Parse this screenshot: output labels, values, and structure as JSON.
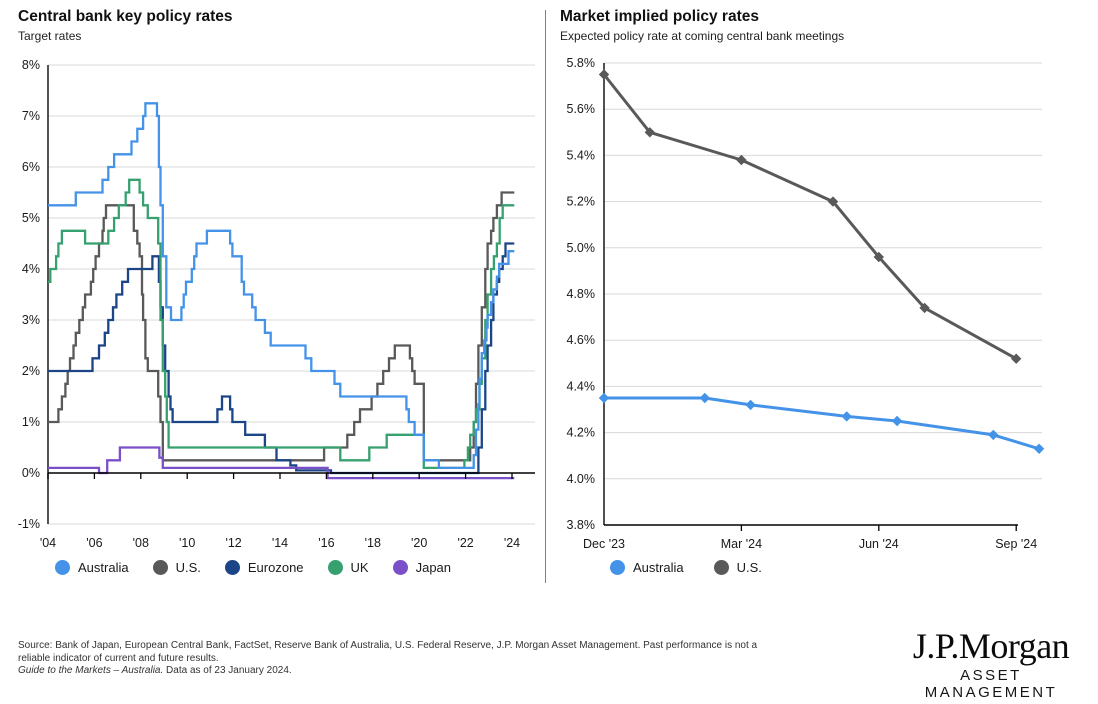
{
  "panels": [
    {
      "title": "Central bank key policy rates",
      "subtitle": "Target rates"
    },
    {
      "title": "Market implied policy rates",
      "subtitle": "Expected policy rate at coming central bank meetings"
    }
  ],
  "chart_data": [
    {
      "type": "line",
      "subtype": "step",
      "title": "Central bank key policy rates",
      "ylabel": "Target rates",
      "x_domain": [
        2004,
        2024.15
      ],
      "ylim": [
        -1,
        8
      ],
      "y_ticks": [
        8,
        7,
        6,
        5,
        4,
        3,
        2,
        1,
        0,
        -1
      ],
      "y_tick_labels": [
        "8%",
        "7%",
        "6%",
        "5%",
        "4%",
        "3%",
        "2%",
        "1%",
        "0%",
        "-1%"
      ],
      "x_ticks": [
        2004,
        2006,
        2008,
        2010,
        2012,
        2014,
        2016,
        2018,
        2020,
        2022,
        2024
      ],
      "x_tick_labels": [
        "'04",
        "'06",
        "'08",
        "'10",
        "'12",
        "'14",
        "'16",
        "'18",
        "'20",
        "'22",
        "'24"
      ],
      "grid": "horizontal",
      "legend_position": "bottom",
      "zero_axis": true,
      "series": [
        {
          "name": "U.S.",
          "color": "#595959",
          "points": [
            [
              2004.0,
              1.0
            ],
            [
              2004.45,
              1.25
            ],
            [
              2004.6,
              1.5
            ],
            [
              2004.75,
              1.75
            ],
            [
              2004.85,
              2.0
            ],
            [
              2004.95,
              2.25
            ],
            [
              2005.1,
              2.5
            ],
            [
              2005.2,
              2.75
            ],
            [
              2005.35,
              3.0
            ],
            [
              2005.5,
              3.25
            ],
            [
              2005.6,
              3.5
            ],
            [
              2005.85,
              3.75
            ],
            [
              2005.95,
              4.0
            ],
            [
              2006.05,
              4.25
            ],
            [
              2006.2,
              4.5
            ],
            [
              2006.35,
              4.75
            ],
            [
              2006.4,
              5.0
            ],
            [
              2006.5,
              5.25
            ],
            [
              2007.7,
              4.75
            ],
            [
              2007.85,
              4.5
            ],
            [
              2007.95,
              4.25
            ],
            [
              2008.05,
              3.5
            ],
            [
              2008.1,
              3.0
            ],
            [
              2008.2,
              2.25
            ],
            [
              2008.3,
              2.0
            ],
            [
              2008.75,
              1.5
            ],
            [
              2008.85,
              1.0
            ],
            [
              2008.95,
              0.25
            ],
            [
              2015.9,
              0.5
            ],
            [
              2016.9,
              0.75
            ],
            [
              2017.2,
              1.0
            ],
            [
              2017.45,
              1.25
            ],
            [
              2017.95,
              1.5
            ],
            [
              2018.2,
              1.75
            ],
            [
              2018.45,
              2.0
            ],
            [
              2018.7,
              2.25
            ],
            [
              2018.95,
              2.5
            ],
            [
              2019.6,
              2.25
            ],
            [
              2019.7,
              2.0
            ],
            [
              2019.8,
              1.75
            ],
            [
              2020.2,
              0.25
            ],
            [
              2022.2,
              0.5
            ],
            [
              2022.35,
              1.0
            ],
            [
              2022.45,
              1.75
            ],
            [
              2022.55,
              2.5
            ],
            [
              2022.7,
              3.25
            ],
            [
              2022.85,
              4.0
            ],
            [
              2022.95,
              4.5
            ],
            [
              2023.1,
              4.75
            ],
            [
              2023.2,
              5.0
            ],
            [
              2023.35,
              5.25
            ],
            [
              2023.55,
              5.5
            ],
            [
              2024.1,
              5.5
            ]
          ]
        },
        {
          "name": "Eurozone",
          "color": "#1C4587",
          "points": [
            [
              2004.0,
              2.0
            ],
            [
              2005.92,
              2.25
            ],
            [
              2006.2,
              2.5
            ],
            [
              2006.45,
              2.75
            ],
            [
              2006.6,
              3.0
            ],
            [
              2006.8,
              3.25
            ],
            [
              2006.95,
              3.5
            ],
            [
              2007.2,
              3.75
            ],
            [
              2007.45,
              4.0
            ],
            [
              2008.5,
              4.25
            ],
            [
              2008.78,
              3.75
            ],
            [
              2008.85,
              3.25
            ],
            [
              2008.95,
              2.5
            ],
            [
              2009.05,
              2.0
            ],
            [
              2009.2,
              1.5
            ],
            [
              2009.28,
              1.25
            ],
            [
              2009.37,
              1.0
            ],
            [
              2011.3,
              1.25
            ],
            [
              2011.5,
              1.5
            ],
            [
              2011.85,
              1.25
            ],
            [
              2011.95,
              1.0
            ],
            [
              2012.5,
              0.75
            ],
            [
              2013.35,
              0.5
            ],
            [
              2013.85,
              0.25
            ],
            [
              2014.45,
              0.15
            ],
            [
              2014.7,
              0.05
            ],
            [
              2016.2,
              0.0
            ],
            [
              2022.55,
              0.5
            ],
            [
              2022.7,
              1.25
            ],
            [
              2022.85,
              2.0
            ],
            [
              2022.95,
              2.5
            ],
            [
              2023.1,
              3.0
            ],
            [
              2023.2,
              3.5
            ],
            [
              2023.35,
              3.75
            ],
            [
              2023.45,
              4.0
            ],
            [
              2023.6,
              4.25
            ],
            [
              2023.72,
              4.5
            ],
            [
              2024.1,
              4.5
            ]
          ]
        },
        {
          "name": "UK",
          "color": "#36A16F",
          "points": [
            [
              2004.0,
              3.75
            ],
            [
              2004.1,
              4.0
            ],
            [
              2004.35,
              4.25
            ],
            [
              2004.45,
              4.5
            ],
            [
              2004.6,
              4.75
            ],
            [
              2005.6,
              4.5
            ],
            [
              2006.6,
              4.75
            ],
            [
              2006.85,
              5.0
            ],
            [
              2007.05,
              5.25
            ],
            [
              2007.35,
              5.5
            ],
            [
              2007.5,
              5.75
            ],
            [
              2007.95,
              5.5
            ],
            [
              2008.1,
              5.25
            ],
            [
              2008.3,
              5.0
            ],
            [
              2008.75,
              4.5
            ],
            [
              2008.85,
              3.0
            ],
            [
              2008.95,
              2.0
            ],
            [
              2009.05,
              1.5
            ],
            [
              2009.12,
              1.0
            ],
            [
              2009.2,
              0.5
            ],
            [
              2016.6,
              0.25
            ],
            [
              2017.85,
              0.5
            ],
            [
              2018.6,
              0.75
            ],
            [
              2020.2,
              0.1
            ],
            [
              2021.95,
              0.25
            ],
            [
              2022.1,
              0.5
            ],
            [
              2022.2,
              0.75
            ],
            [
              2022.35,
              1.0
            ],
            [
              2022.45,
              1.25
            ],
            [
              2022.6,
              1.75
            ],
            [
              2022.7,
              2.25
            ],
            [
              2022.85,
              3.0
            ],
            [
              2022.95,
              3.5
            ],
            [
              2023.1,
              4.0
            ],
            [
              2023.22,
              4.25
            ],
            [
              2023.35,
              4.5
            ],
            [
              2023.47,
              5.0
            ],
            [
              2023.6,
              5.25
            ],
            [
              2024.1,
              5.25
            ]
          ]
        },
        {
          "name": "Japan",
          "color": "#7A4FC9",
          "points": [
            [
              2004.0,
              0.1
            ],
            [
              2006.2,
              0.0
            ],
            [
              2006.55,
              0.25
            ],
            [
              2007.1,
              0.5
            ],
            [
              2008.8,
              0.3
            ],
            [
              2008.95,
              0.1
            ],
            [
              2016.05,
              -0.1
            ],
            [
              2024.1,
              -0.1
            ]
          ]
        },
        {
          "name": "Australia",
          "color": "#4493E8",
          "points": [
            [
              2004.0,
              5.25
            ],
            [
              2005.2,
              5.5
            ],
            [
              2006.35,
              5.75
            ],
            [
              2006.6,
              6.0
            ],
            [
              2006.85,
              6.25
            ],
            [
              2007.6,
              6.5
            ],
            [
              2007.85,
              6.75
            ],
            [
              2008.1,
              7.0
            ],
            [
              2008.2,
              7.25
            ],
            [
              2008.7,
              7.0
            ],
            [
              2008.78,
              6.0
            ],
            [
              2008.85,
              5.25
            ],
            [
              2008.95,
              4.25
            ],
            [
              2009.1,
              3.25
            ],
            [
              2009.3,
              3.0
            ],
            [
              2009.75,
              3.25
            ],
            [
              2009.85,
              3.5
            ],
            [
              2009.95,
              3.75
            ],
            [
              2010.2,
              4.0
            ],
            [
              2010.3,
              4.25
            ],
            [
              2010.4,
              4.5
            ],
            [
              2010.85,
              4.75
            ],
            [
              2011.85,
              4.5
            ],
            [
              2011.95,
              4.25
            ],
            [
              2012.35,
              3.75
            ],
            [
              2012.45,
              3.5
            ],
            [
              2012.8,
              3.25
            ],
            [
              2012.95,
              3.0
            ],
            [
              2013.35,
              2.75
            ],
            [
              2013.6,
              2.5
            ],
            [
              2015.1,
              2.25
            ],
            [
              2015.35,
              2.0
            ],
            [
              2016.35,
              1.75
            ],
            [
              2016.6,
              1.5
            ],
            [
              2019.45,
              1.25
            ],
            [
              2019.55,
              1.0
            ],
            [
              2019.8,
              0.75
            ],
            [
              2020.2,
              0.25
            ],
            [
              2020.85,
              0.1
            ],
            [
              2022.35,
              0.35
            ],
            [
              2022.45,
              0.85
            ],
            [
              2022.55,
              1.35
            ],
            [
              2022.6,
              1.85
            ],
            [
              2022.7,
              2.35
            ],
            [
              2022.8,
              2.6
            ],
            [
              2022.9,
              2.85
            ],
            [
              2022.95,
              3.1
            ],
            [
              2023.1,
              3.35
            ],
            [
              2023.2,
              3.6
            ],
            [
              2023.35,
              3.85
            ],
            [
              2023.45,
              4.1
            ],
            [
              2023.85,
              4.35
            ],
            [
              2024.1,
              4.35
            ]
          ]
        }
      ],
      "legend": [
        "Australia",
        "U.S.",
        "Eurozone",
        "UK",
        "Japan"
      ],
      "legend_colors": [
        "#4493E8",
        "#595959",
        "#1C4587",
        "#36A16F",
        "#7A4FC9"
      ]
    },
    {
      "type": "line",
      "subtype": "marker-diamond",
      "title": "Market implied policy rates",
      "ylabel": "Expected policy rate at coming central bank meetings",
      "x_domain": [
        0,
        9.6
      ],
      "ylim": [
        3.8,
        5.8
      ],
      "y_ticks": [
        5.8,
        5.6,
        5.4,
        5.2,
        5.0,
        4.8,
        4.6,
        4.4,
        4.2,
        4.0,
        3.8
      ],
      "y_tick_labels": [
        "5.8%",
        "5.6%",
        "5.4%",
        "5.2%",
        "5.0%",
        "4.8%",
        "4.6%",
        "4.4%",
        "4.2%",
        "4.0%",
        "3.8%"
      ],
      "x_ticks": [
        0,
        3,
        6,
        9
      ],
      "x_tick_labels": [
        "Dec '23",
        "Mar '24",
        "Jun '24",
        "Sep '24"
      ],
      "grid": "horizontal",
      "legend_position": "bottom",
      "series": [
        {
          "name": "Australia",
          "color": "#4493E8",
          "x": [
            0,
            2.2,
            3.2,
            5.3,
            6.4,
            8.5,
            9.5
          ],
          "values": [
            4.35,
            4.35,
            4.32,
            4.27,
            4.25,
            4.19,
            4.13
          ]
        },
        {
          "name": "U.S.",
          "color": "#595959",
          "x": [
            0,
            1.0,
            3.0,
            5.0,
            6.0,
            7.0,
            9.0
          ],
          "values": [
            5.75,
            5.5,
            5.38,
            5.2,
            4.96,
            4.74,
            4.52
          ]
        }
      ],
      "legend": [
        "Australia",
        "U.S."
      ],
      "legend_colors": [
        "#4493E8",
        "#595959"
      ]
    }
  ],
  "footer": {
    "line1": "Source: Bank of Japan, European Central Bank, FactSet, Reserve Bank of Australia, U.S. Federal Reserve, J.P. Morgan Asset Management. Past performance is not a",
    "line2": "reliable indicator of current and future results.",
    "line3_italic": "Guide to the Markets – Australia.",
    "line3_rest": " Data as of 23 January 2024."
  },
  "logo": {
    "brand": "J.P.Morgan",
    "division": "ASSET MANAGEMENT"
  }
}
